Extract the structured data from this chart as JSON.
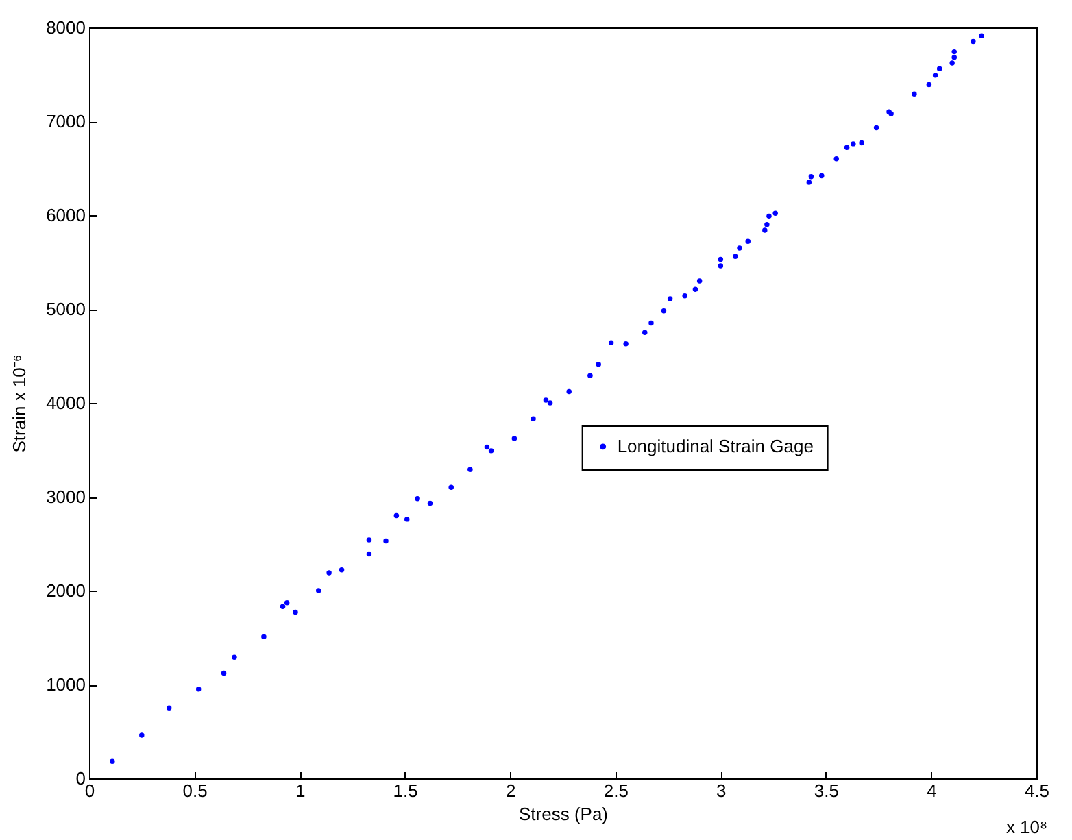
{
  "chart_data": {
    "type": "scatter",
    "xlabel": "Stress (Pa)",
    "ylabel": "Strain x 10⁻⁶",
    "annotations": [
      "x 10⁸"
    ],
    "xlim": [
      0,
      4.5
    ],
    "xticks": [
      0,
      0.5,
      1,
      1.5,
      2,
      2.5,
      3,
      3.5,
      4,
      4.5
    ],
    "ylim": [
      0,
      8000
    ],
    "yticks": [
      0,
      1000,
      2000,
      3000,
      4000,
      5000,
      6000,
      7000,
      8000
    ],
    "grid": false,
    "legend": "right",
    "marker": "circle",
    "series": [
      {
        "name": "Longitudinal Strain Gage",
        "color": "#0000ff",
        "x": [
          0.11,
          0.25,
          0.38,
          0.52,
          0.64,
          0.69,
          0.83,
          0.92,
          0.94,
          0.98,
          1.09,
          1.14,
          1.2,
          1.33,
          1.33,
          1.41,
          1.46,
          1.51,
          1.56,
          1.62,
          1.72,
          1.81,
          1.89,
          1.91,
          2.02,
          2.11,
          2.17,
          2.19,
          2.28,
          2.38,
          2.42,
          2.48,
          2.55,
          2.64,
          2.67,
          2.73,
          2.76,
          2.83,
          2.88,
          2.9,
          3.0,
          3.0,
          3.07,
          3.09,
          3.13,
          3.21,
          3.22,
          3.23,
          3.26,
          3.42,
          3.43,
          3.48,
          3.55,
          3.6,
          3.63,
          3.67,
          3.74,
          3.8,
          3.81,
          3.92,
          3.99,
          4.02,
          4.04,
          4.1,
          4.11,
          4.11,
          4.2,
          4.24
        ],
        "values": [
          180,
          460,
          750,
          950,
          1120,
          1290,
          1510,
          1830,
          1870,
          1770,
          2000,
          2190,
          2220,
          2390,
          2540,
          2530,
          2800,
          2760,
          2980,
          2930,
          3100,
          3290,
          3530,
          3490,
          3620,
          3830,
          4030,
          4000,
          4120,
          4290,
          4410,
          4640,
          4630,
          4750,
          4850,
          4980,
          5110,
          5140,
          5210,
          5300,
          5460,
          5530,
          5560,
          5650,
          5720,
          5840,
          5900,
          5990,
          6020,
          6350,
          6410,
          6420,
          6600,
          6720,
          6760,
          6770,
          6930,
          7100,
          7080,
          7290,
          7390,
          7490,
          7560,
          7620,
          7680,
          7740,
          7850,
          7910
        ]
      }
    ]
  }
}
